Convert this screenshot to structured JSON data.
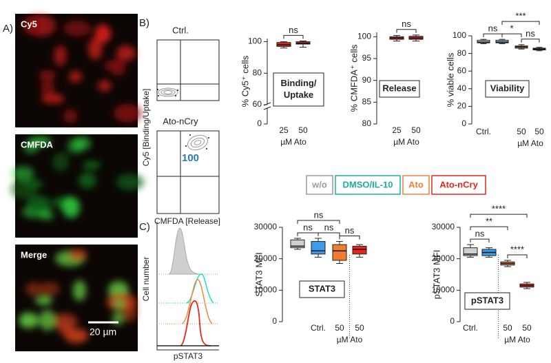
{
  "panels": {
    "a": "A)",
    "b": "B)",
    "c": "C)"
  },
  "micrographs": [
    {
      "label": "Cy5"
    },
    {
      "label": "CMFDA"
    },
    {
      "label": "Merge",
      "scale_bar": "20 µm"
    }
  ],
  "flow": {
    "plots": [
      {
        "title": "Ctrl."
      },
      {
        "title": "Ato-nCry",
        "value_label": 100
      }
    ],
    "y_label": "Cy5 [Binding/Uptake]",
    "x_label": "CMFDA [Release]"
  },
  "legend": [
    {
      "label": "w/o",
      "color": "#9a9a9a"
    },
    {
      "label": "DMSO/IL-10",
      "color": "#1fae9c"
    },
    {
      "label": "Ato",
      "color": "#e8823a"
    },
    {
      "label": "Ato-nCry",
      "color": "#e8251c"
    }
  ],
  "histogram": {
    "y_label": "Cell number",
    "x_label": "pSTAT3"
  },
  "chart_data": [
    {
      "type": "box",
      "y_label": "% Cy5⁺ cells",
      "x_label": "µM Ato",
      "inset": [
        "Binding/",
        "Uptake"
      ],
      "categories": [
        "25",
        "50"
      ],
      "ylim": [
        0,
        102
      ],
      "yticks": [
        0,
        60,
        80,
        100
      ],
      "axis_break": true,
      "boxes": [
        {
          "color": "#e8251c",
          "stats": [
            96,
            97,
            98,
            99.5,
            100
          ]
        },
        {
          "color": "#e8251c",
          "stats": [
            96.5,
            98.5,
            99,
            100,
            100.5
          ]
        }
      ],
      "brackets": [
        {
          "label": "ns",
          "between": [
            0,
            1
          ]
        }
      ]
    },
    {
      "type": "box",
      "y_label": "% CMFDA⁺ cells",
      "x_label": "µM Ato",
      "inset": [
        "Release"
      ],
      "categories": [
        "25",
        "50"
      ],
      "ylim": [
        80,
        101
      ],
      "yticks": [
        80,
        85,
        90,
        95,
        100
      ],
      "boxes": [
        {
          "color": "#e8251c",
          "stats": [
            99,
            99.4,
            99.7,
            100,
            100.3
          ]
        },
        {
          "color": "#e8251c",
          "stats": [
            99,
            99.4,
            99.7,
            100.1,
            100.4
          ]
        }
      ],
      "brackets": [
        {
          "label": "ns",
          "between": [
            0,
            1
          ]
        }
      ]
    },
    {
      "type": "box",
      "y_label": "% viable cells",
      "x_label": "µM Ato",
      "inset": [
        "Viability"
      ],
      "categories": [
        "Ctrl.",
        null,
        "50",
        "50"
      ],
      "ylim": [
        0,
        100
      ],
      "yticks": [
        0,
        20,
        40,
        60,
        80,
        100
      ],
      "boxes": [
        {
          "color": "#d0d0d0",
          "stats": [
            91,
            92,
            93,
            95,
            96
          ]
        },
        {
          "color": "#8ec5ec",
          "stats": [
            91,
            92,
            93,
            95,
            96
          ]
        },
        {
          "color": "#f08a3c",
          "stats": [
            85,
            86,
            87.5,
            88.5,
            90
          ]
        },
        {
          "color": "#e8251c",
          "stats": [
            83,
            84,
            85,
            86,
            87
          ]
        }
      ],
      "brackets": [
        {
          "label": "ns",
          "between": [
            0,
            1
          ]
        },
        {
          "label": "ns",
          "between": [
            2,
            3
          ]
        },
        {
          "label": "*",
          "between": [
            1,
            2
          ]
        },
        {
          "label": "***",
          "between": [
            1,
            3
          ]
        }
      ]
    },
    {
      "type": "box",
      "y_label": "STAT3 MFI",
      "x_label": "µM Ato",
      "inset": [
        "STAT3"
      ],
      "divider_after": 2,
      "categories": [
        null,
        "Ctrl.",
        "50",
        "50"
      ],
      "ylim": [
        0,
        30000
      ],
      "yticks": [
        0,
        10000,
        20000,
        30000
      ],
      "boxes": [
        {
          "color": "#d0d0d0",
          "stats": [
            23000,
            23500,
            24000,
            26000,
            26500
          ]
        },
        {
          "color": "#3d9be9",
          "stats": [
            20500,
            21500,
            22500,
            25500,
            26500
          ]
        },
        {
          "color": "#f07d2a",
          "stats": [
            18500,
            19500,
            22500,
            24500,
            25500
          ]
        },
        {
          "color": "#e8251c",
          "stats": [
            20500,
            21500,
            23000,
            24000,
            24500
          ]
        }
      ],
      "brackets": [
        {
          "label": "ns",
          "between": [
            0,
            1
          ]
        },
        {
          "label": "ns",
          "between": [
            1,
            2
          ]
        },
        {
          "label": "ns",
          "between": [
            2,
            3
          ]
        },
        {
          "label": "ns",
          "between": [
            0,
            2
          ]
        }
      ]
    },
    {
      "type": "box",
      "y_label": "pSTAT3 MFI",
      "x_label": "µM Ato",
      "inset": [
        "pSTAT3"
      ],
      "divider_after": 1,
      "categories": [
        "Ctrl.",
        null,
        "50",
        "50"
      ],
      "ylim": [
        0,
        30000
      ],
      "yticks": [
        0,
        10000,
        20000,
        30000
      ],
      "boxes": [
        {
          "color": "#d0d0d0",
          "stats": [
            20500,
            21000,
            21500,
            23500,
            24500
          ]
        },
        {
          "color": "#3d9be9",
          "stats": [
            20500,
            21000,
            22000,
            23000,
            23500
          ]
        },
        {
          "color": "#f07d2a",
          "stats": [
            17500,
            18000,
            18500,
            19000,
            19500
          ]
        },
        {
          "color": "#e8251c",
          "stats": [
            10500,
            11000,
            11500,
            12000,
            12500
          ]
        }
      ],
      "brackets": [
        {
          "label": "ns",
          "between": [
            0,
            1
          ]
        },
        {
          "label": "****",
          "between": [
            2,
            3
          ]
        },
        {
          "label": "**",
          "between": [
            0,
            2
          ]
        },
        {
          "label": "****",
          "between": [
            0,
            3
          ]
        }
      ]
    }
  ]
}
